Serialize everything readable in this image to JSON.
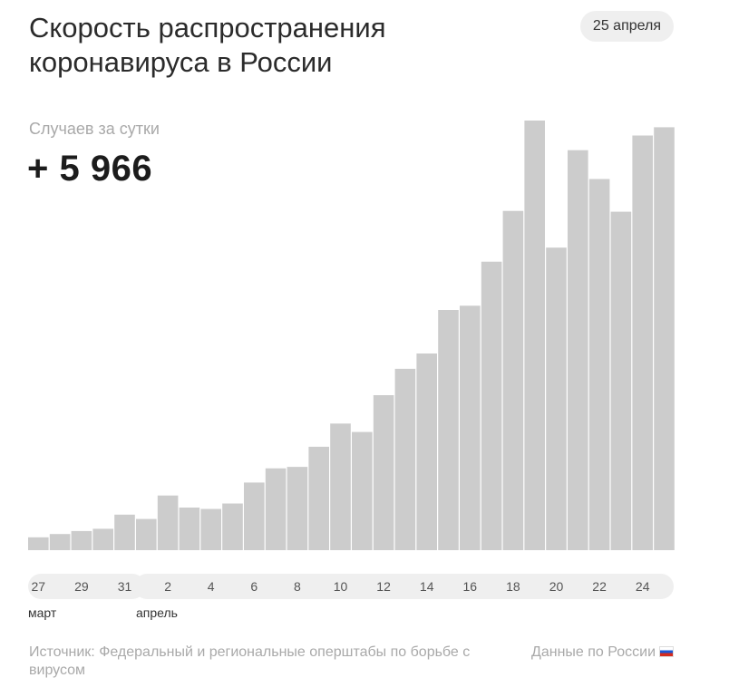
{
  "header": {
    "title_line1": "Скорость распространения",
    "title_line2": "коронавируса в России",
    "date": "25 апреля"
  },
  "stat": {
    "label": "Случаев за сутки",
    "value": "+ 5 966"
  },
  "chart_data": {
    "type": "bar",
    "categories": [
      "27",
      "28",
      "29",
      "30",
      "31",
      "1",
      "2",
      "3",
      "4",
      "5",
      "6",
      "7",
      "8",
      "9",
      "10",
      "11",
      "12",
      "13",
      "14",
      "15",
      "16",
      "17",
      "18",
      "19",
      "20",
      "21",
      "22",
      "23",
      "24",
      "25"
    ],
    "tick_labels": [
      "27",
      "29",
      "31",
      "2",
      "4",
      "6",
      "8",
      "10",
      "12",
      "14",
      "16",
      "18",
      "20",
      "22",
      "24"
    ],
    "months": [
      "март",
      "апрель"
    ],
    "values": [
      182,
      228,
      270,
      302,
      501,
      440,
      771,
      601,
      582,
      658,
      954,
      1154,
      1175,
      1459,
      1786,
      1667,
      2186,
      2558,
      2774,
      3388,
      3448,
      4070,
      4785,
      6060,
      4268,
      5642,
      5236,
      4774,
      5849,
      5966
    ],
    "ylim": [
      0,
      6060
    ],
    "grid": false,
    "bar_color": "#cccccc"
  },
  "footer": {
    "source": "Источник: Федеральный и региональные оперштабы по борьбе с вирусом",
    "scope": "Данные по России",
    "flag_icon": "russia-flag-icon"
  }
}
